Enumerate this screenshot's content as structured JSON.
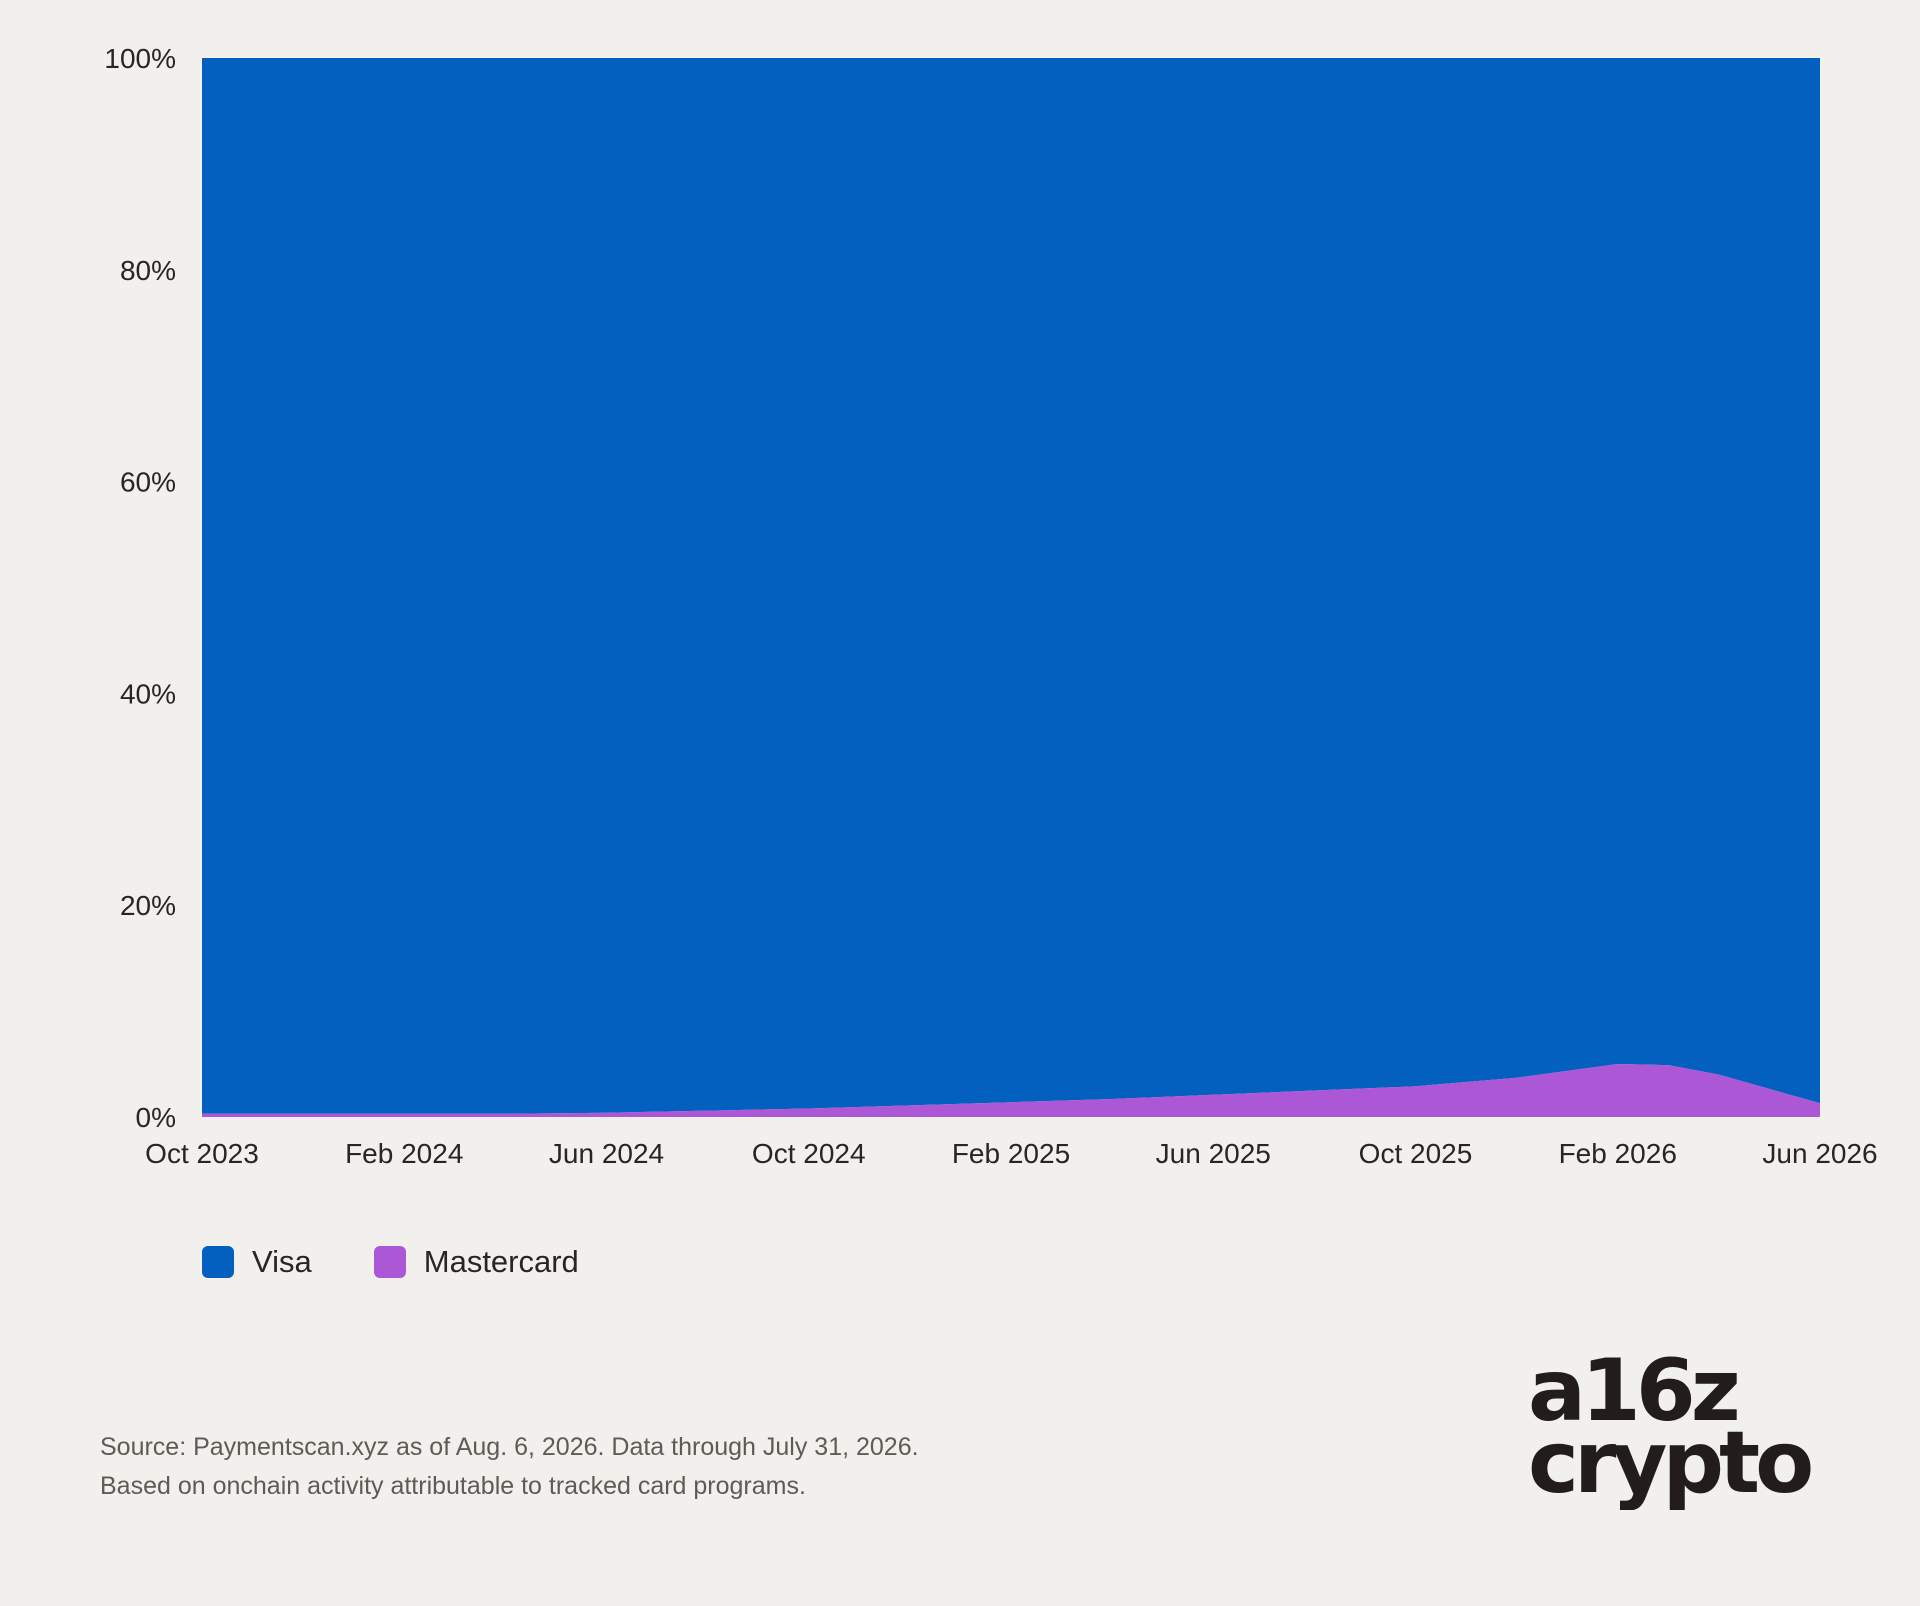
{
  "chart_data": {
    "type": "area",
    "stacked": true,
    "normalized": true,
    "x": [
      "Oct 2023",
      "Dec 2023",
      "Feb 2024",
      "Apr 2024",
      "Jun 2024",
      "Aug 2024",
      "Oct 2024",
      "Dec 2024",
      "Feb 2025",
      "Apr 2025",
      "Jun 2025",
      "Aug 2025",
      "Oct 2025",
      "Dec 2025",
      "Feb 2026",
      "Mar 2026",
      "Apr 2026",
      "Jun 2026"
    ],
    "x_ticks": [
      "Oct 2023",
      "Feb 2024",
      "Jun 2024",
      "Oct 2024",
      "Feb 2025",
      "Jun 2025",
      "Oct 2025",
      "Feb 2026",
      "Jun 2026"
    ],
    "series": [
      {
        "name": "Visa",
        "color": "#0360bf",
        "values": [
          99.7,
          99.7,
          99.7,
          99.7,
          99.6,
          99.4,
          99.2,
          98.9,
          98.6,
          98.3,
          97.9,
          97.5,
          97.1,
          96.3,
          95.0,
          95.1,
          96.0,
          98.7
        ]
      },
      {
        "name": "Mastercard",
        "color": "#ab57d6",
        "values": [
          0.3,
          0.3,
          0.3,
          0.3,
          0.4,
          0.6,
          0.8,
          1.1,
          1.4,
          1.7,
          2.1,
          2.5,
          2.9,
          3.7,
          5.0,
          4.9,
          4.0,
          1.3
        ]
      }
    ],
    "y_ticks": [
      "0%",
      "20%",
      "40%",
      "60%",
      "80%",
      "100%"
    ],
    "ylim": [
      0,
      100
    ],
    "title": "",
    "xlabel": "",
    "ylabel": "",
    "grid": false,
    "legend_position": "bottom-left"
  },
  "legend": {
    "visa": "Visa",
    "mastercard": "Mastercard"
  },
  "source": {
    "line1": "Source: Paymentscan.xyz as of Aug. 6, 2026. Data through July 31, 2026.",
    "line2": "Based on onchain activity attributable to tracked card programs."
  },
  "logo": {
    "line1": "a16z",
    "line2": "crypto"
  }
}
